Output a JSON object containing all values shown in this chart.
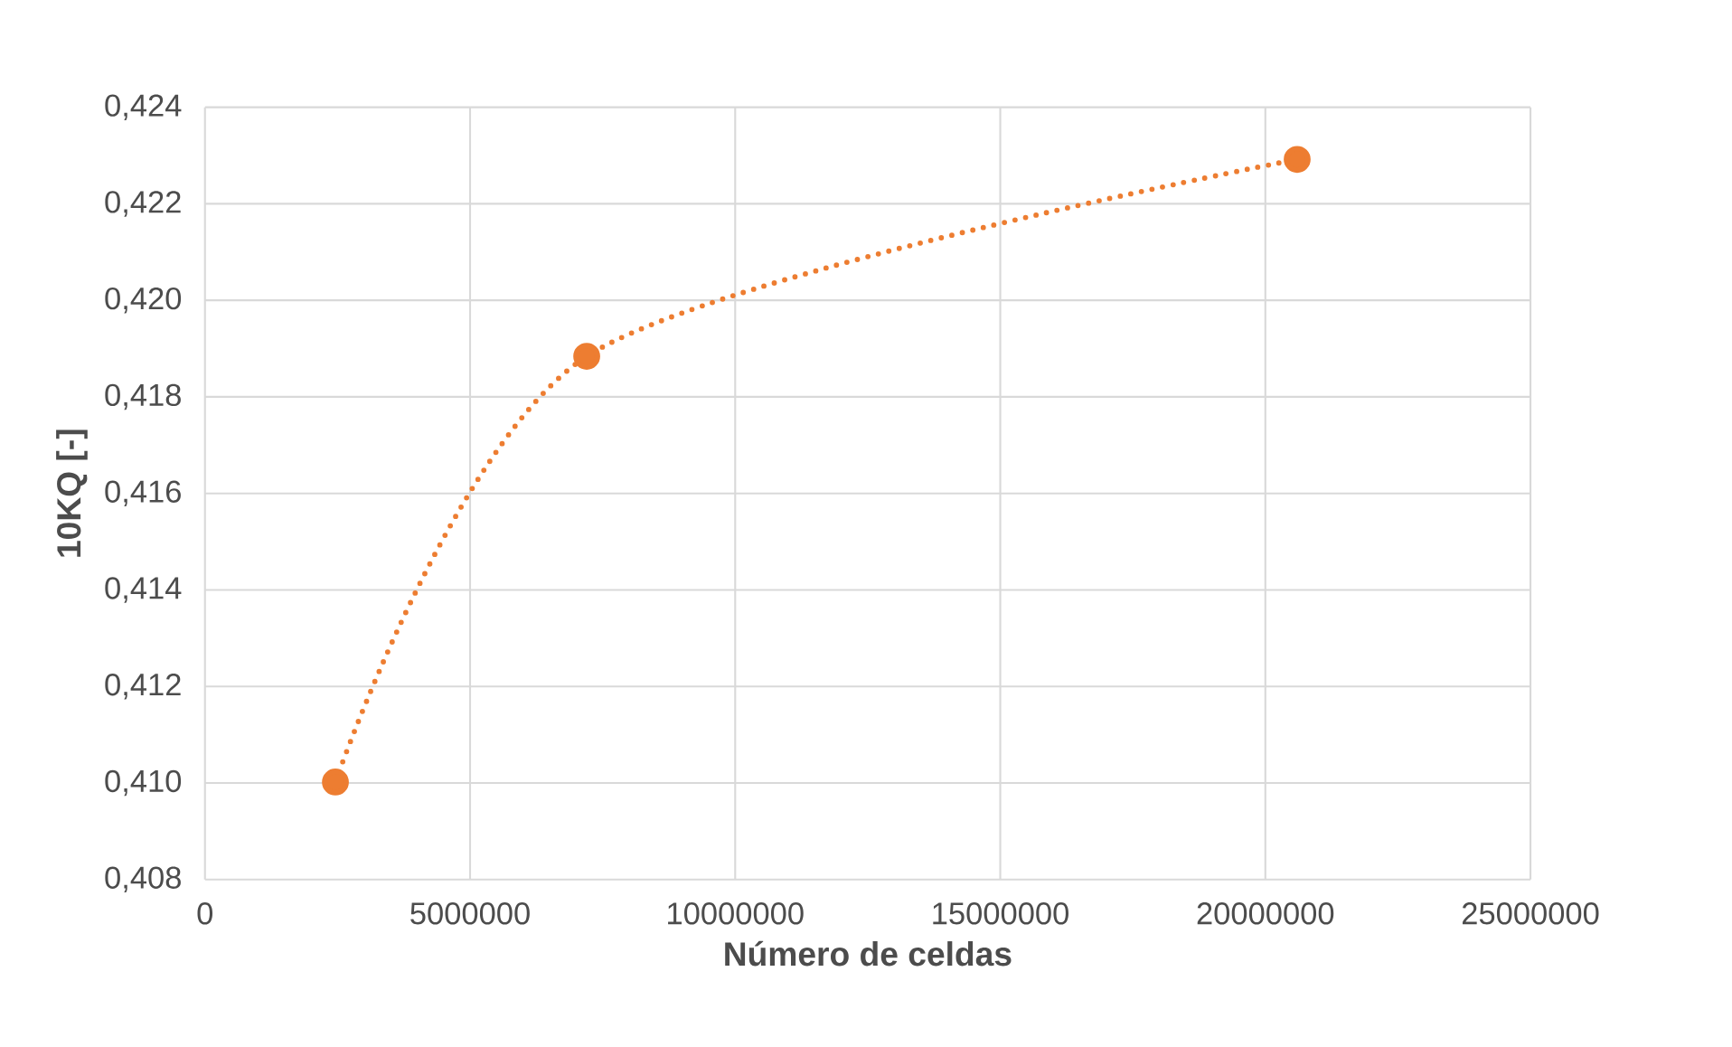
{
  "chart_data": {
    "type": "line",
    "xlabel": "Número de celdas",
    "ylabel": "10KQ [-]",
    "x": [
      2460000,
      7200000,
      20600000
    ],
    "series": [
      {
        "color": "#ed7d31",
        "values": [
          0.41002,
          0.41884,
          0.42292
        ]
      }
    ],
    "xlim": [
      0,
      25000000
    ],
    "xticks": [
      0,
      5000000,
      10000000,
      15000000,
      20000000,
      25000000
    ],
    "ylim": [
      0.408,
      0.424
    ],
    "yticks": [
      {
        "value": 0.408,
        "label": "0,408"
      },
      {
        "value": 0.41,
        "label": "0,410"
      },
      {
        "value": 0.412,
        "label": "0,412"
      },
      {
        "value": 0.414,
        "label": "0,414"
      },
      {
        "value": 0.416,
        "label": "0,416"
      },
      {
        "value": 0.418,
        "label": "0,418"
      },
      {
        "value": 0.42,
        "label": "0,420"
      },
      {
        "value": 0.422,
        "label": "0,422"
      },
      {
        "value": 0.424,
        "label": "0,424"
      }
    ],
    "grid": true,
    "marker": "circle",
    "line_style": "dotted"
  }
}
